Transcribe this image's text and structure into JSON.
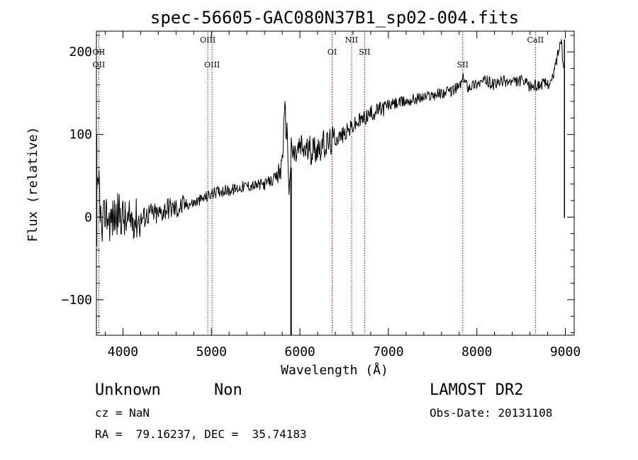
{
  "chart_data": {
    "type": "line",
    "title": "spec-56605-GAC080N37B1_sp02-004.fits",
    "xlabel": "Wavelength (Å)",
    "ylabel": "Flux (relative)",
    "xlim": [
      3700,
      9100
    ],
    "ylim": [
      -143,
      225
    ],
    "xticks": [
      4000,
      5000,
      6000,
      7000,
      8000,
      9000
    ],
    "yticks": [
      -100,
      0,
      100,
      200
    ],
    "ytick_labels": [
      "−100",
      "0",
      "100",
      "200"
    ],
    "grid": false,
    "line_color": "#000000",
    "marker_color": "#8b0000",
    "series": [
      {
        "values": [
          [
            3700,
            10
          ],
          [
            3730,
            45
          ],
          [
            3760,
            -25
          ],
          [
            3800,
            8
          ],
          [
            3850,
            -5
          ],
          [
            3900,
            0
          ],
          [
            3950,
            5
          ],
          [
            4000,
            0
          ],
          [
            4050,
            -10
          ],
          [
            4100,
            0
          ],
          [
            4200,
            -3
          ],
          [
            4300,
            5
          ],
          [
            4400,
            3
          ],
          [
            4500,
            12
          ],
          [
            4600,
            10
          ],
          [
            4700,
            15
          ],
          [
            4800,
            17
          ],
          [
            4900,
            22
          ],
          [
            5000,
            28
          ],
          [
            5100,
            32
          ],
          [
            5200,
            32
          ],
          [
            5300,
            35
          ],
          [
            5400,
            38
          ],
          [
            5500,
            38
          ],
          [
            5600,
            40
          ],
          [
            5700,
            45
          ],
          [
            5750,
            50
          ],
          [
            5790,
            60
          ],
          [
            5830,
            125
          ],
          [
            5860,
            95
          ],
          [
            5880,
            25
          ],
          [
            5900,
            80
          ],
          [
            5950,
            75
          ],
          [
            6000,
            85
          ],
          [
            6100,
            80
          ],
          [
            6200,
            85
          ],
          [
            6300,
            88
          ],
          [
            6400,
            95
          ],
          [
            6500,
            100
          ],
          [
            6600,
            110
          ],
          [
            6700,
            118
          ],
          [
            6800,
            125
          ],
          [
            6900,
            130
          ],
          [
            7000,
            135
          ],
          [
            7100,
            138
          ],
          [
            7200,
            140
          ],
          [
            7300,
            143
          ],
          [
            7400,
            145
          ],
          [
            7500,
            148
          ],
          [
            7600,
            150
          ],
          [
            7700,
            152
          ],
          [
            7800,
            158
          ],
          [
            7850,
            168
          ],
          [
            7900,
            158
          ],
          [
            8000,
            162
          ],
          [
            8100,
            165
          ],
          [
            8200,
            160
          ],
          [
            8300,
            165
          ],
          [
            8400,
            163
          ],
          [
            8500,
            165
          ],
          [
            8600,
            158
          ],
          [
            8700,
            160
          ],
          [
            8800,
            162
          ],
          [
            8850,
            165
          ],
          [
            8900,
            190
          ],
          [
            8950,
            215
          ],
          [
            8980,
            180
          ]
        ]
      }
    ],
    "absorption_dip": {
      "x": 5900,
      "y": -143
    },
    "lines": [
      {
        "label": "OII",
        "x": 3727,
        "row": 1
      },
      {
        "label": "OII",
        "x": 3727,
        "row": 2
      },
      {
        "label": "OIII",
        "x": 4959,
        "row": 0
      },
      {
        "label": "OIII",
        "x": 5007,
        "row": 2
      },
      {
        "label": "OI",
        "x": 6364,
        "row": 1
      },
      {
        "label": "NII",
        "x": 6584,
        "row": 0
      },
      {
        "label": "SII",
        "x": 6731,
        "row": 1
      },
      {
        "label": "SII",
        "x": 7840,
        "row": 2
      },
      {
        "label": "CaII",
        "x": 8662,
        "row": 0
      }
    ]
  },
  "info": {
    "class": "Unknown",
    "subclass": "Non",
    "survey": "LAMOST DR2",
    "cz": "cz = NaN",
    "obs_date": "Obs-Date: 20131108",
    "coords": "RA =  79.16237, DEC =  35.74183"
  }
}
